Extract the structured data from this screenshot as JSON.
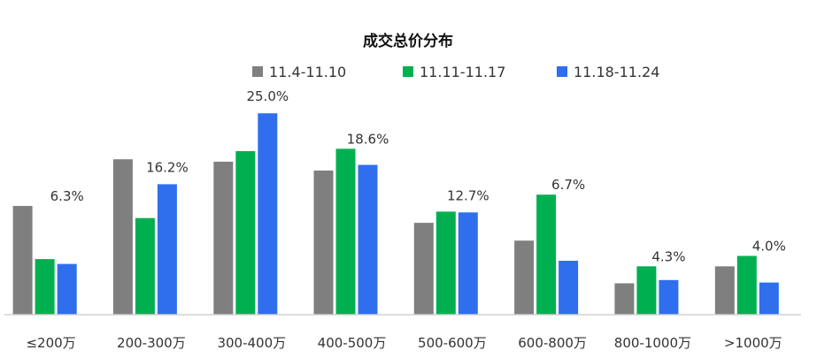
{
  "chart_data": {
    "type": "bar",
    "title": "成交总价分布",
    "xlabel": "",
    "ylabel": "",
    "ylim": [
      0,
      27
    ],
    "grid": false,
    "legend_position": "top",
    "categories": [
      "≤200万",
      "200-300万",
      "300-400万",
      "400-500万",
      "500-600万",
      "600-800万",
      "800-1000万",
      ">1000万"
    ],
    "series": [
      {
        "name": "11.4-11.10",
        "color": "#7f7f7f",
        "values": [
          13.5,
          19.3,
          19.0,
          17.9,
          11.4,
          9.2,
          3.9,
          6.0
        ]
      },
      {
        "name": "11.11-11.17",
        "color": "#00b050",
        "values": [
          6.9,
          12.0,
          20.3,
          20.6,
          12.8,
          14.9,
          6.0,
          7.3
        ]
      },
      {
        "name": "11.18-11.24",
        "color": "#2f6fed",
        "values": [
          6.3,
          16.2,
          25.0,
          18.6,
          12.7,
          6.7,
          4.3,
          4.0
        ]
      }
    ],
    "data_labels": [
      {
        "series": 2,
        "category": 0,
        "text": "6.3%"
      },
      {
        "series": 2,
        "category": 1,
        "text": "16.2%"
      },
      {
        "series": 2,
        "category": 2,
        "text": "25.0%"
      },
      {
        "series": 2,
        "category": 3,
        "text": "18.6%"
      },
      {
        "series": 2,
        "category": 4,
        "text": "12.7%"
      },
      {
        "series": 2,
        "category": 5,
        "text": "6.7%"
      },
      {
        "series": 2,
        "category": 6,
        "text": "4.3%"
      },
      {
        "series": 2,
        "category": 7,
        "text": "4.0%"
      }
    ]
  }
}
